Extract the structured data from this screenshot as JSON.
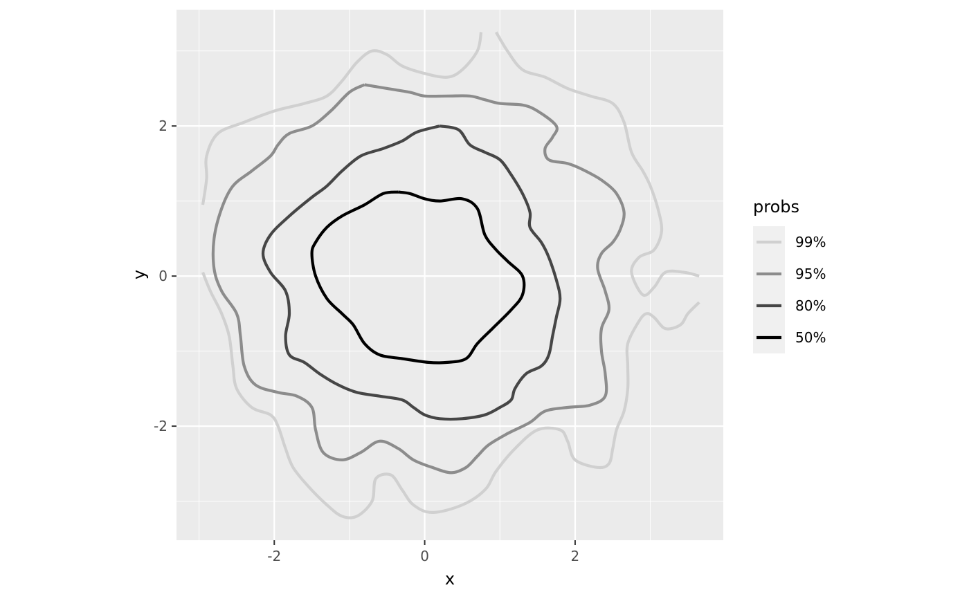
{
  "chart_data": {
    "type": "line",
    "title": "",
    "xlabel": "x",
    "ylabel": "y",
    "xlim": [
      -3.3,
      3.97
    ],
    "ylim": [
      -3.52,
      3.55
    ],
    "x_ticks": [
      -2,
      0,
      2
    ],
    "y_ticks": [
      -2,
      0,
      2
    ],
    "x_minor_ticks": [
      -3,
      -1,
      1,
      3
    ],
    "y_minor_ticks": [
      -3,
      -1,
      1,
      3
    ],
    "x_tick_labels": [
      "-2",
      "0",
      "2"
    ],
    "y_tick_labels": [
      "-2",
      "0",
      "2"
    ],
    "grid": true,
    "legend": {
      "title": "probs",
      "position": "right"
    },
    "colors": {
      "panel": "#ebebeb",
      "grid": "#ffffff",
      "legend_key": "#f0f0f0"
    },
    "series": [
      {
        "name": "99%",
        "color": "#d0d0d0",
        "paths": [
          [
            [
              -2.95,
              0.95
            ],
            [
              -2.9,
              1.3
            ],
            [
              -2.9,
              1.6
            ],
            [
              -2.75,
              1.9
            ],
            [
              -2.4,
              2.05
            ],
            [
              -2.0,
              2.2
            ],
            [
              -1.6,
              2.3
            ],
            [
              -1.3,
              2.4
            ],
            [
              -1.1,
              2.6
            ],
            [
              -0.9,
              2.85
            ],
            [
              -0.7,
              3.0
            ],
            [
              -0.5,
              2.95
            ],
            [
              -0.3,
              2.8
            ],
            [
              0.0,
              2.7
            ],
            [
              0.3,
              2.65
            ],
            [
              0.5,
              2.75
            ],
            [
              0.7,
              3.0
            ],
            [
              0.75,
              3.25
            ]
          ],
          [
            [
              0.95,
              3.25
            ],
            [
              1.1,
              3.0
            ],
            [
              1.3,
              2.75
            ],
            [
              1.6,
              2.65
            ],
            [
              1.9,
              2.5
            ],
            [
              2.2,
              2.4
            ],
            [
              2.5,
              2.3
            ],
            [
              2.65,
              2.05
            ],
            [
              2.75,
              1.65
            ],
            [
              2.9,
              1.4
            ],
            [
              3.0,
              1.2
            ],
            [
              3.1,
              0.9
            ],
            [
              3.15,
              0.6
            ],
            [
              3.05,
              0.35
            ],
            [
              2.85,
              0.25
            ],
            [
              2.75,
              0.05
            ],
            [
              2.9,
              -0.25
            ],
            [
              3.05,
              -0.15
            ],
            [
              3.2,
              0.05
            ],
            [
              3.45,
              0.05
            ],
            [
              3.65,
              0.0
            ]
          ],
          [
            [
              3.65,
              -0.35
            ],
            [
              3.5,
              -0.5
            ],
            [
              3.4,
              -0.65
            ],
            [
              3.2,
              -0.7
            ],
            [
              3.05,
              -0.55
            ],
            [
              2.95,
              -0.5
            ],
            [
              2.85,
              -0.6
            ],
            [
              2.7,
              -0.9
            ],
            [
              2.7,
              -1.2
            ],
            [
              2.7,
              -1.5
            ],
            [
              2.65,
              -1.8
            ],
            [
              2.55,
              -2.05
            ],
            [
              2.5,
              -2.3
            ],
            [
              2.45,
              -2.5
            ],
            [
              2.3,
              -2.55
            ],
            [
              2.0,
              -2.45
            ],
            [
              1.9,
              -2.2
            ],
            [
              1.8,
              -2.05
            ],
            [
              1.5,
              -2.05
            ],
            [
              1.2,
              -2.3
            ],
            [
              0.95,
              -2.6
            ],
            [
              0.8,
              -2.85
            ],
            [
              0.5,
              -3.05
            ],
            [
              0.1,
              -3.15
            ],
            [
              -0.15,
              -3.05
            ],
            [
              -0.3,
              -2.85
            ],
            [
              -0.45,
              -2.65
            ],
            [
              -0.65,
              -2.7
            ],
            [
              -0.7,
              -3.0
            ],
            [
              -0.9,
              -3.2
            ],
            [
              -1.1,
              -3.2
            ],
            [
              -1.3,
              -3.05
            ],
            [
              -1.55,
              -2.8
            ],
            [
              -1.75,
              -2.55
            ],
            [
              -1.85,
              -2.3
            ],
            [
              -1.95,
              -2.0
            ],
            [
              -2.05,
              -1.85
            ],
            [
              -2.3,
              -1.75
            ],
            [
              -2.5,
              -1.5
            ],
            [
              -2.55,
              -1.2
            ],
            [
              -2.6,
              -0.8
            ],
            [
              -2.7,
              -0.5
            ],
            [
              -2.85,
              -0.2
            ],
            [
              -2.95,
              0.05
            ]
          ]
        ]
      },
      {
        "name": "95%",
        "color": "#8c8c8c",
        "paths": [
          [
            [
              -0.8,
              2.55
            ],
            [
              -0.5,
              2.5
            ],
            [
              -0.2,
              2.45
            ],
            [
              0.0,
              2.4
            ],
            [
              0.3,
              2.4
            ],
            [
              0.6,
              2.4
            ],
            [
              0.8,
              2.35
            ],
            [
              1.0,
              2.3
            ],
            [
              1.3,
              2.28
            ],
            [
              1.5,
              2.2
            ],
            [
              1.75,
              2.0
            ],
            [
              1.7,
              1.85
            ],
            [
              1.6,
              1.7
            ],
            [
              1.65,
              1.55
            ],
            [
              1.9,
              1.5
            ],
            [
              2.1,
              1.42
            ],
            [
              2.35,
              1.28
            ],
            [
              2.55,
              1.1
            ],
            [
              2.65,
              0.85
            ],
            [
              2.6,
              0.62
            ],
            [
              2.5,
              0.45
            ],
            [
              2.35,
              0.3
            ],
            [
              2.3,
              0.1
            ],
            [
              2.4,
              -0.2
            ],
            [
              2.45,
              -0.45
            ],
            [
              2.35,
              -0.7
            ],
            [
              2.35,
              -1.0
            ],
            [
              2.4,
              -1.3
            ],
            [
              2.4,
              -1.6
            ],
            [
              2.2,
              -1.72
            ],
            [
              1.9,
              -1.75
            ],
            [
              1.6,
              -1.8
            ],
            [
              1.4,
              -1.95
            ],
            [
              1.1,
              -2.1
            ],
            [
              0.85,
              -2.25
            ],
            [
              0.7,
              -2.4
            ],
            [
              0.55,
              -2.55
            ],
            [
              0.35,
              -2.62
            ],
            [
              0.1,
              -2.55
            ],
            [
              -0.15,
              -2.45
            ],
            [
              -0.35,
              -2.3
            ],
            [
              -0.6,
              -2.2
            ],
            [
              -0.85,
              -2.35
            ],
            [
              -1.1,
              -2.45
            ],
            [
              -1.35,
              -2.35
            ],
            [
              -1.45,
              -2.05
            ],
            [
              -1.5,
              -1.75
            ],
            [
              -1.7,
              -1.6
            ],
            [
              -1.95,
              -1.55
            ],
            [
              -2.25,
              -1.45
            ],
            [
              -2.4,
              -1.2
            ],
            [
              -2.45,
              -0.8
            ],
            [
              -2.5,
              -0.5
            ],
            [
              -2.7,
              -0.2
            ],
            [
              -2.8,
              0.1
            ],
            [
              -2.8,
              0.5
            ],
            [
              -2.7,
              0.9
            ],
            [
              -2.55,
              1.2
            ],
            [
              -2.3,
              1.4
            ],
            [
              -2.05,
              1.6
            ],
            [
              -1.95,
              1.75
            ],
            [
              -1.8,
              1.9
            ],
            [
              -1.5,
              2.0
            ],
            [
              -1.25,
              2.2
            ],
            [
              -1.0,
              2.45
            ],
            [
              -0.8,
              2.55
            ]
          ]
        ]
      },
      {
        "name": "80%",
        "color": "#464646",
        "paths": [
          [
            [
              0.2,
              2.0
            ],
            [
              0.45,
              1.95
            ],
            [
              0.6,
              1.75
            ],
            [
              0.8,
              1.65
            ],
            [
              1.0,
              1.55
            ],
            [
              1.15,
              1.35
            ],
            [
              1.3,
              1.1
            ],
            [
              1.4,
              0.85
            ],
            [
              1.4,
              0.65
            ],
            [
              1.55,
              0.45
            ],
            [
              1.65,
              0.25
            ],
            [
              1.75,
              -0.05
            ],
            [
              1.8,
              -0.3
            ],
            [
              1.75,
              -0.55
            ],
            [
              1.7,
              -0.8
            ],
            [
              1.65,
              -1.05
            ],
            [
              1.55,
              -1.2
            ],
            [
              1.35,
              -1.3
            ],
            [
              1.2,
              -1.5
            ],
            [
              1.15,
              -1.65
            ],
            [
              1.0,
              -1.75
            ],
            [
              0.8,
              -1.85
            ],
            [
              0.5,
              -1.9
            ],
            [
              0.2,
              -1.9
            ],
            [
              0.0,
              -1.85
            ],
            [
              -0.15,
              -1.75
            ],
            [
              -0.3,
              -1.65
            ],
            [
              -0.6,
              -1.6
            ],
            [
              -0.9,
              -1.55
            ],
            [
              -1.15,
              -1.45
            ],
            [
              -1.4,
              -1.3
            ],
            [
              -1.6,
              -1.15
            ],
            [
              -1.8,
              -1.05
            ],
            [
              -1.85,
              -0.8
            ],
            [
              -1.8,
              -0.5
            ],
            [
              -1.85,
              -0.2
            ],
            [
              -2.05,
              0.05
            ],
            [
              -2.15,
              0.3
            ],
            [
              -2.05,
              0.55
            ],
            [
              -1.8,
              0.8
            ],
            [
              -1.5,
              1.05
            ],
            [
              -1.3,
              1.2
            ],
            [
              -1.1,
              1.4
            ],
            [
              -0.85,
              1.6
            ],
            [
              -0.55,
              1.7
            ],
            [
              -0.3,
              1.8
            ],
            [
              -0.1,
              1.92
            ],
            [
              0.2,
              2.0
            ]
          ]
        ]
      },
      {
        "name": "50%",
        "color": "#000000",
        "paths": [
          [
            [
              -0.35,
              1.12
            ],
            [
              -0.2,
              1.1
            ],
            [
              0.0,
              1.03
            ],
            [
              0.2,
              1.0
            ],
            [
              0.5,
              1.03
            ],
            [
              0.7,
              0.9
            ],
            [
              0.8,
              0.55
            ],
            [
              0.95,
              0.35
            ],
            [
              1.1,
              0.2
            ],
            [
              1.3,
              0.0
            ],
            [
              1.3,
              -0.25
            ],
            [
              1.15,
              -0.45
            ],
            [
              0.9,
              -0.7
            ],
            [
              0.7,
              -0.9
            ],
            [
              0.55,
              -1.1
            ],
            [
              0.3,
              -1.15
            ],
            [
              0.05,
              -1.15
            ],
            [
              -0.3,
              -1.1
            ],
            [
              -0.6,
              -1.05
            ],
            [
              -0.8,
              -0.9
            ],
            [
              -0.95,
              -0.65
            ],
            [
              -1.1,
              -0.5
            ],
            [
              -1.3,
              -0.3
            ],
            [
              -1.45,
              0.0
            ],
            [
              -1.5,
              0.3
            ],
            [
              -1.45,
              0.45
            ],
            [
              -1.3,
              0.65
            ],
            [
              -1.1,
              0.8
            ],
            [
              -0.8,
              0.95
            ],
            [
              -0.55,
              1.1
            ],
            [
              -0.35,
              1.12
            ]
          ]
        ]
      }
    ]
  }
}
